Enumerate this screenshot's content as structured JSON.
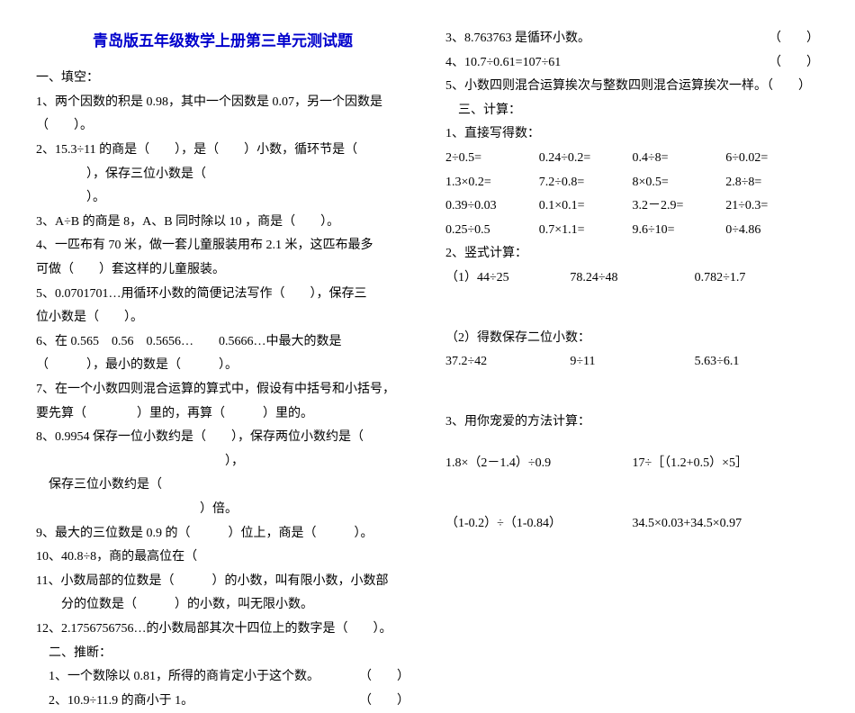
{
  "title": "青岛版五年级数学上册第三单元测试题",
  "left": {
    "s1_header": "一、填空：",
    "q1a": "1、两个因数的积是 0.98，其中一个因数是 0.07，另一个因数是",
    "q1b": "（　　）。",
    "q2a": "2、15.3÷11 的商是（　　），是（　　）小数，循环节是（",
    "q2b": "　　　　），保存三位小数是（",
    "q2c": "　　　　）。",
    "q3": "3、A÷B 的商是 8，A、B 同时除以 10 ，商是（　　）。",
    "q4a": "4、一匹布有 70 米，做一套儿童服装用布 2.1 米，这匹布最多",
    "q4b": "可做（　　）套这样的儿童服装。",
    "q5a": "5、0.0701701…用循环小数的简便记法写作（　　），保存三",
    "q5b": "位小数是（　　）。",
    "q6a": "6、在 0.565　0.56　0.5656…　　0.5666…中最大的数是",
    "q6b": "（　　　），最小的数是（　　　）。",
    "q7a": "7、在一个小数四则混合运算的算式中，假设有中括号和小括号，",
    "q7b": "要先算（　　　　）里的，再算（　　　）里的。",
    "q8a": "8、0.9954 保存一位小数约是（　　），保存两位小数约是（",
    "q8b": "　　　　　　　　　　　　　　　），",
    "q8c": "　保存三位小数约是（",
    "q8d": "　　　　　　　　　　　　　）倍。",
    "q9": "9、最大的三位数是 0.9 的（　　　）位上，商是（　　　）。",
    "q10": "10、40.8÷8，商的最高位在（",
    "q11a": "11、小数局部的位数是（　　　）的小数，叫有限小数，小数部",
    "q11b": "　　分的位数是（　　　）的小数，叫无限小数。",
    "q12": "12、2.1756756756…的小数局部其次十四位上的数字是（　　）。",
    "s2_header": "　二、推断：",
    "j1": "　1、一个数除以 0.81，所得的商肯定小于这个数。",
    "j2": "　2、10.9÷11.9 的商小于 1。",
    "paren": "（　　）"
  },
  "right": {
    "j3": "3、8.763763 是循环小数。",
    "j4": "4、10.7÷0.61=107÷61",
    "j5": "5、小数四则混合运算挨次与整数四则混合运算挨次一样。（　　）",
    "paren": "（　　）",
    "s3_header": "　三、计算：",
    "c1_header": "1、直接写得数：",
    "r1": [
      "2÷0.5=",
      "0.24÷0.2=",
      "0.4÷8=",
      "6÷0.02="
    ],
    "r2": [
      "1.3×0.2=",
      "7.2÷0.8=",
      "8×0.5=",
      "2.8÷8="
    ],
    "r3": [
      "0.39÷0.03",
      "0.1×0.1=",
      "3.2－2.9=",
      "21÷0.3="
    ],
    "r4": [
      "0.25÷0.5",
      "0.7×1.1=",
      "9.6÷10=",
      "0÷4.86"
    ],
    "c2_header": "2、竖式计算：",
    "c2_row": [
      "（1）44÷25",
      "78.24÷48",
      "0.782÷1.7"
    ],
    "c2b_header": "（2）得数保存二位小数：",
    "c2b_row": [
      "37.2÷42",
      "9÷11",
      "5.63÷6.1"
    ],
    "c3_header": "3、用你宠爱的方法计算：",
    "c3_r1": [
      "1.8×（2－1.4）÷0.9",
      "17÷［（1.2+0.5）×5］"
    ],
    "c3_r2": [
      "（1-0.2）÷（1-0.84）",
      "34.5×0.03+34.5×0.97"
    ]
  }
}
